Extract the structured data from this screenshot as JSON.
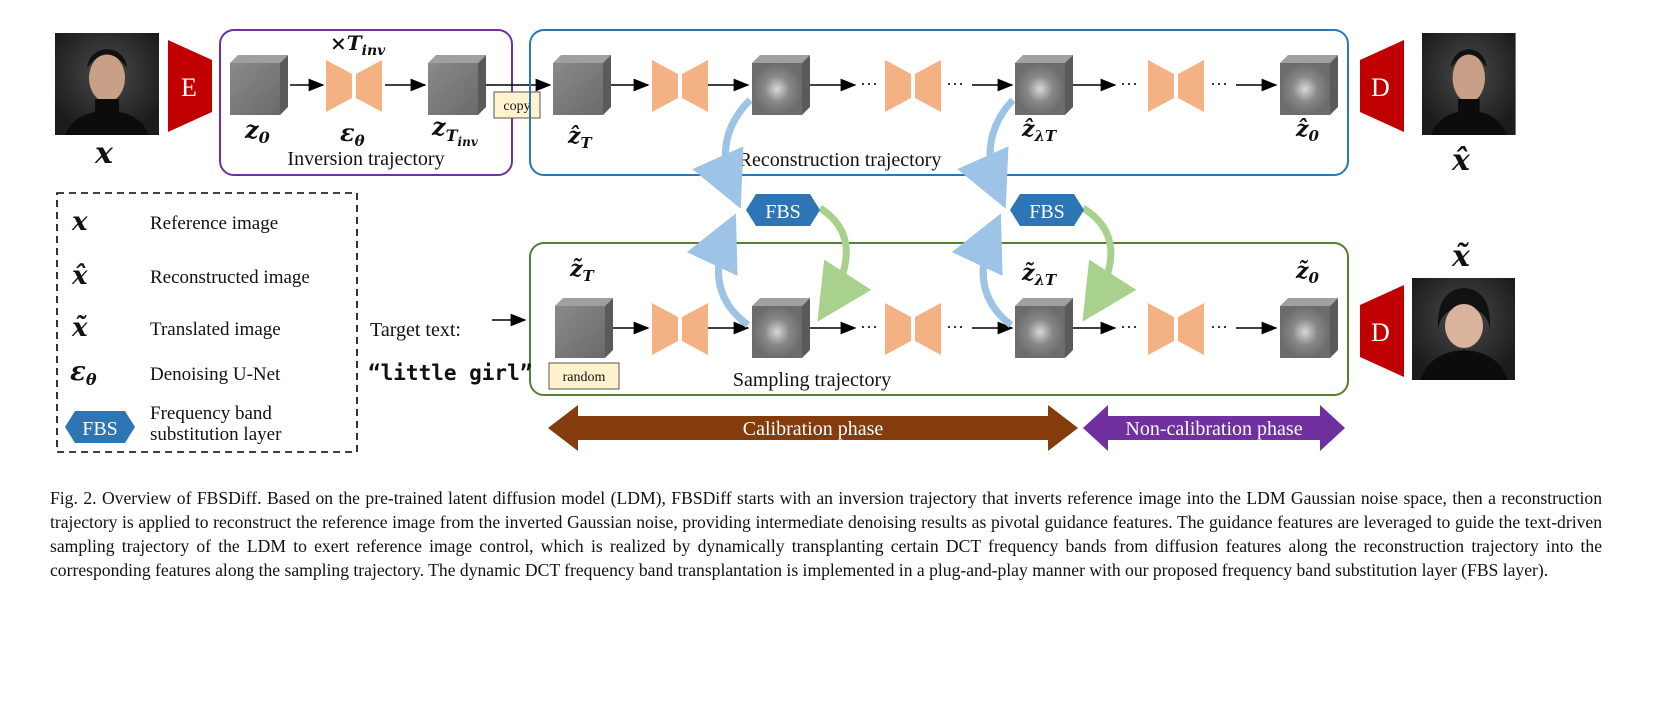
{
  "figure": {
    "encoder_label": "E",
    "decoder_label": "D",
    "symbols": {
      "x": "x",
      "x_hat": "x̂",
      "x_tilde": "x̃",
      "z0": "z",
      "z0_sub": "0",
      "eps": "ε",
      "eps_sub": "θ",
      "times_T_inv": "×T",
      "inv_sub": "inv",
      "zT_inv": "z",
      "zT_inv_sub": "T",
      "zhat_T": "ẑ",
      "T_sub": "T",
      "zhat_lT": "ẑ",
      "lT_sub": "λT",
      "zhat_0": "ẑ",
      "zero_sub": "0",
      "ztilde_T": "z̃",
      "ztilde_lT": "z̃",
      "ztilde_0": "z̃"
    },
    "ellipsis": "···",
    "inversion_label": "Inversion trajectory",
    "reconstruction_label": "Reconstruction trajectory",
    "sampling_label": "Sampling trajectory",
    "copy_label": "copy",
    "random_label": "random",
    "fbs_label": "FBS",
    "target_text_label": "Target text:",
    "target_text_value": "“little girl”",
    "calibration_label": "Calibration phase",
    "non_calibration_label": "Non-calibration phase",
    "legend": [
      {
        "symbol": "x",
        "text": "Reference image"
      },
      {
        "symbol": "x̂",
        "text": "Reconstructed image"
      },
      {
        "symbol": "x̃",
        "text": "Translated image"
      },
      {
        "symbol": "ε",
        "symbol_sub": "θ",
        "text": "Denoising U-Net"
      },
      {
        "symbol": "FBS",
        "text": "Frequency band",
        "text2": "substitution layer"
      }
    ],
    "colors": {
      "inversion": "#7030a0",
      "reconstruction": "#2e75b6",
      "sampling": "#548235",
      "encoder_decoder": "#c00000",
      "unet": "#f4b183",
      "fbs": "#2e75b6",
      "calibration": "#843c0c",
      "non_calibration": "#7030a0"
    }
  },
  "caption": "Fig. 2.  Overview of FBSDiff. Based on the pre-trained latent diffusion model (LDM), FBSDiff starts with an inversion trajectory that inverts reference image into the LDM Gaussian noise space, then a reconstruction trajectory is applied to reconstruct the reference image from the inverted Gaussian noise, providing intermediate denoising results as pivotal guidance features. The guidance features are leveraged to guide the text-driven sampling trajectory of the LDM to exert reference image control, which is realized by dynamically transplanting certain DCT frequency bands from diffusion features along the reconstruction trajectory into the corresponding features along the sampling trajectory. The dynamic DCT frequency band transplantation is implemented in a plug-and-play manner with our proposed frequency band substitution layer (FBS layer)."
}
